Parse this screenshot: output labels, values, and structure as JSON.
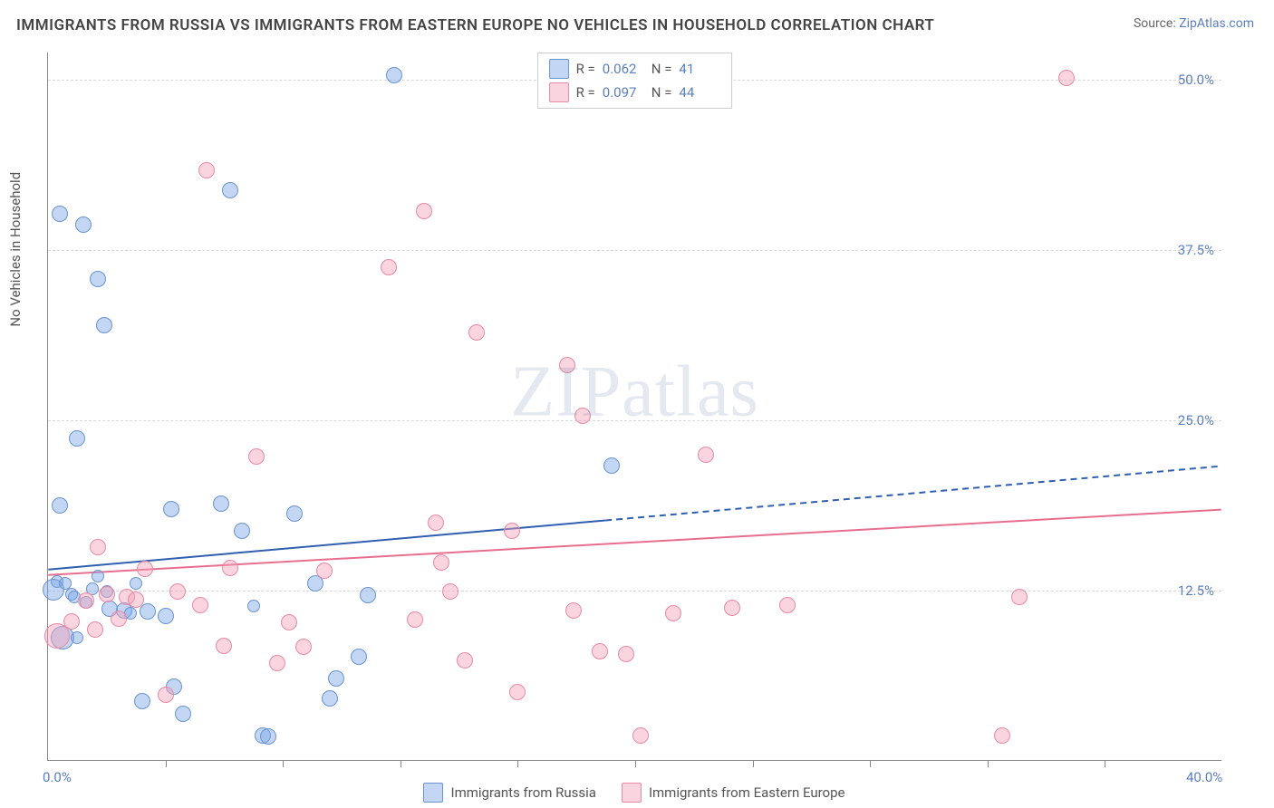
{
  "title": "IMMIGRANTS FROM RUSSIA VS IMMIGRANTS FROM EASTERN EUROPE NO VEHICLES IN HOUSEHOLD CORRELATION CHART",
  "source_label": "Source:",
  "source_name": "ZipAtlas.com",
  "ylabel": "No Vehicles in Household",
  "watermark_a": "ZIP",
  "watermark_b": "atlas",
  "chart": {
    "type": "scatter",
    "background_color": "#ffffff",
    "grid_color": "#d8d8d8",
    "axis_color": "#888888",
    "xlim": [
      0,
      40
    ],
    "ylim": [
      0,
      52
    ],
    "x_ticks_major": [
      0,
      40
    ],
    "x_tick_labels": [
      "0.0%",
      "40.0%"
    ],
    "x_ticks_minor": [
      4,
      8,
      12,
      16,
      20,
      24,
      28,
      32,
      36
    ],
    "y_gridlines": [
      12.5,
      25.0,
      37.5,
      50.0
    ],
    "y_tick_labels": [
      "12.5%",
      "25.0%",
      "37.5%",
      "50.0%"
    ],
    "ytick_color": "#5b7fbf",
    "xtick_color": "#5b7fbf",
    "series": [
      {
        "name": "Immigrants from Russia",
        "marker_fill": "rgba(123,167,230,0.45)",
        "marker_stroke": "#6a93cf",
        "marker_radius_base": 9,
        "R": "0.062",
        "N": "41",
        "trend": {
          "slope": 0.19,
          "intercept": 14.0,
          "solid_xmax": 19,
          "color": "#2f5fb0",
          "width": 2
        },
        "points": [
          {
            "x": 0.4,
            "y": 40.1,
            "r": 9
          },
          {
            "x": 1.2,
            "y": 39.3,
            "r": 9
          },
          {
            "x": 1.7,
            "y": 35.3,
            "r": 9
          },
          {
            "x": 1.9,
            "y": 31.9,
            "r": 9
          },
          {
            "x": 1.0,
            "y": 23.6,
            "r": 9
          },
          {
            "x": 6.2,
            "y": 41.8,
            "r": 9
          },
          {
            "x": 0.4,
            "y": 18.7,
            "r": 9
          },
          {
            "x": 0.3,
            "y": 13.1,
            "r": 7
          },
          {
            "x": 0.2,
            "y": 12.5,
            "r": 12
          },
          {
            "x": 0.6,
            "y": 13.0,
            "r": 7
          },
          {
            "x": 0.8,
            "y": 12.2,
            "r": 7
          },
          {
            "x": 0.5,
            "y": 9.0,
            "r": 13
          },
          {
            "x": 1.3,
            "y": 11.6,
            "r": 7
          },
          {
            "x": 1.5,
            "y": 12.6,
            "r": 7
          },
          {
            "x": 1.7,
            "y": 13.5,
            "r": 7
          },
          {
            "x": 2.1,
            "y": 11.1,
            "r": 9
          },
          {
            "x": 2.6,
            "y": 11.0,
            "r": 9
          },
          {
            "x": 2.8,
            "y": 10.8,
            "r": 7
          },
          {
            "x": 3.4,
            "y": 10.9,
            "r": 9
          },
          {
            "x": 4.2,
            "y": 18.4,
            "r": 9
          },
          {
            "x": 5.9,
            "y": 18.8,
            "r": 9
          },
          {
            "x": 4.0,
            "y": 10.6,
            "r": 9
          },
          {
            "x": 4.3,
            "y": 5.4,
            "r": 9
          },
          {
            "x": 4.6,
            "y": 3.4,
            "r": 9
          },
          {
            "x": 3.2,
            "y": 4.3,
            "r": 9
          },
          {
            "x": 6.6,
            "y": 16.8,
            "r": 9
          },
          {
            "x": 7.3,
            "y": 1.8,
            "r": 9
          },
          {
            "x": 7.5,
            "y": 1.7,
            "r": 9
          },
          {
            "x": 8.4,
            "y": 18.1,
            "r": 9
          },
          {
            "x": 9.1,
            "y": 13.0,
            "r": 9
          },
          {
            "x": 9.8,
            "y": 6.0,
            "r": 9
          },
          {
            "x": 9.6,
            "y": 4.5,
            "r": 9
          },
          {
            "x": 10.6,
            "y": 7.6,
            "r": 9
          },
          {
            "x": 10.9,
            "y": 12.1,
            "r": 9
          },
          {
            "x": 11.8,
            "y": 50.3,
            "r": 9
          },
          {
            "x": 7.0,
            "y": 11.3,
            "r": 7
          },
          {
            "x": 1.0,
            "y": 9.0,
            "r": 7
          },
          {
            "x": 19.2,
            "y": 21.6,
            "r": 9
          },
          {
            "x": 2.0,
            "y": 12.4,
            "r": 7
          },
          {
            "x": 0.9,
            "y": 12.0,
            "r": 7
          },
          {
            "x": 3.0,
            "y": 13.0,
            "r": 7
          }
        ]
      },
      {
        "name": "Immigrants from Eastern Europe",
        "marker_fill": "rgba(244,160,184,0.45)",
        "marker_stroke": "#e88aa6",
        "marker_radius_base": 9,
        "R": "0.097",
        "N": "44",
        "trend": {
          "slope": 0.12,
          "intercept": 13.6,
          "solid_xmax": 40,
          "color": "#e86e8f",
          "width": 2
        },
        "points": [
          {
            "x": 0.3,
            "y": 9.1,
            "r": 14
          },
          {
            "x": 0.8,
            "y": 10.2,
            "r": 9
          },
          {
            "x": 1.3,
            "y": 11.7,
            "r": 9
          },
          {
            "x": 1.6,
            "y": 9.6,
            "r": 9
          },
          {
            "x": 1.7,
            "y": 15.6,
            "r": 9
          },
          {
            "x": 2.0,
            "y": 12.2,
            "r": 9
          },
          {
            "x": 2.4,
            "y": 10.4,
            "r": 9
          },
          {
            "x": 2.7,
            "y": 12.0,
            "r": 9
          },
          {
            "x": 3.0,
            "y": 11.8,
            "r": 9
          },
          {
            "x": 3.3,
            "y": 14.0,
            "r": 9
          },
          {
            "x": 4.4,
            "y": 12.4,
            "r": 9
          },
          {
            "x": 5.2,
            "y": 11.4,
            "r": 9
          },
          {
            "x": 5.4,
            "y": 43.3,
            "r": 9
          },
          {
            "x": 6.0,
            "y": 8.4,
            "r": 9
          },
          {
            "x": 7.1,
            "y": 22.3,
            "r": 9
          },
          {
            "x": 7.8,
            "y": 7.1,
            "r": 9
          },
          {
            "x": 8.2,
            "y": 10.1,
            "r": 9
          },
          {
            "x": 8.7,
            "y": 8.3,
            "r": 9
          },
          {
            "x": 9.4,
            "y": 13.9,
            "r": 9
          },
          {
            "x": 11.6,
            "y": 36.2,
            "r": 9
          },
          {
            "x": 12.5,
            "y": 10.3,
            "r": 9
          },
          {
            "x": 12.8,
            "y": 40.3,
            "r": 9
          },
          {
            "x": 13.2,
            "y": 17.4,
            "r": 9
          },
          {
            "x": 13.4,
            "y": 14.5,
            "r": 9
          },
          {
            "x": 13.7,
            "y": 12.4,
            "r": 9
          },
          {
            "x": 14.2,
            "y": 7.3,
            "r": 9
          },
          {
            "x": 14.6,
            "y": 31.4,
            "r": 9
          },
          {
            "x": 15.8,
            "y": 16.8,
            "r": 9
          },
          {
            "x": 16.0,
            "y": 5.0,
            "r": 9
          },
          {
            "x": 17.7,
            "y": 29.0,
            "r": 9
          },
          {
            "x": 17.9,
            "y": 11.0,
            "r": 9
          },
          {
            "x": 18.2,
            "y": 25.3,
            "r": 9
          },
          {
            "x": 18.8,
            "y": 8.0,
            "r": 9
          },
          {
            "x": 19.7,
            "y": 7.8,
            "r": 9
          },
          {
            "x": 20.2,
            "y": 1.8,
            "r": 9
          },
          {
            "x": 21.3,
            "y": 10.8,
            "r": 9
          },
          {
            "x": 22.4,
            "y": 22.4,
            "r": 9
          },
          {
            "x": 23.3,
            "y": 11.2,
            "r": 9
          },
          {
            "x": 25.2,
            "y": 11.4,
            "r": 9
          },
          {
            "x": 32.5,
            "y": 1.8,
            "r": 9
          },
          {
            "x": 33.1,
            "y": 12.0,
            "r": 9
          },
          {
            "x": 34.7,
            "y": 50.1,
            "r": 9
          },
          {
            "x": 4.0,
            "y": 4.8,
            "r": 9
          },
          {
            "x": 6.2,
            "y": 14.1,
            "r": 9
          }
        ]
      }
    ]
  },
  "legend": {
    "R_label": "R =",
    "N_label": "N ="
  }
}
